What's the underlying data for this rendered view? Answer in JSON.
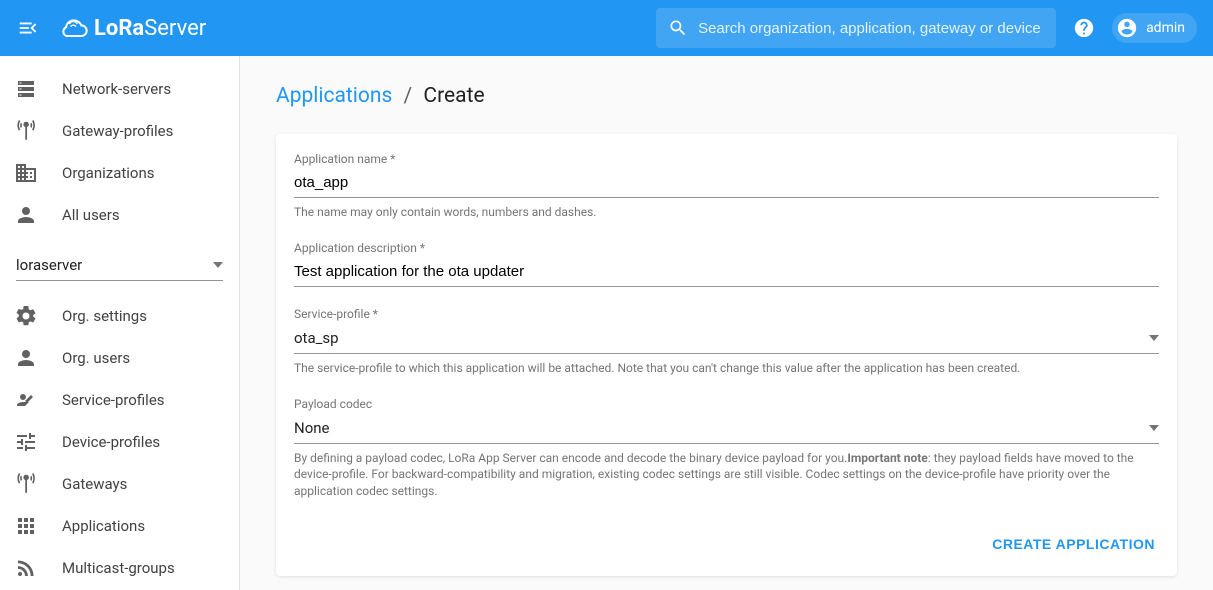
{
  "header": {
    "brand_bold": "LoRa",
    "brand_light": "Server",
    "search_placeholder": "Search organization, application, gateway or device",
    "user_label": "admin"
  },
  "sidebar": {
    "global_items": [
      {
        "label": "Network-servers",
        "icon": "dns"
      },
      {
        "label": "Gateway-profiles",
        "icon": "antenna"
      },
      {
        "label": "Organizations",
        "icon": "domain"
      },
      {
        "label": "All users",
        "icon": "person"
      }
    ],
    "org_selected": "loraserver",
    "org_items": [
      {
        "label": "Org. settings",
        "icon": "gear"
      },
      {
        "label": "Org. users",
        "icon": "person"
      },
      {
        "label": "Service-profiles",
        "icon": "person-card"
      },
      {
        "label": "Device-profiles",
        "icon": "tune"
      },
      {
        "label": "Gateways",
        "icon": "antenna"
      },
      {
        "label": "Applications",
        "icon": "apps"
      },
      {
        "label": "Multicast-groups",
        "icon": "rss"
      }
    ]
  },
  "breadcrumb": {
    "parent": "Applications",
    "current": "Create"
  },
  "form": {
    "app_name": {
      "label": "Application name *",
      "value": "ota_app",
      "help": "The name may only contain words, numbers and dashes."
    },
    "app_desc": {
      "label": "Application description *",
      "value": "Test application for the ota updater"
    },
    "service_profile": {
      "label": "Service-profile *",
      "value": "ota_sp",
      "help": "The service-profile to which this application will be attached. Note that you can't change this value after the application has been created."
    },
    "payload_codec": {
      "label": "Payload codec",
      "value": "None",
      "help_pre": "By defining a payload codec, LoRa App Server can encode and decode the binary device payload for you.",
      "help_bold": "Important note",
      "help_post": ": they payload fields have moved to the device-profile. For backward-compatibility and migration, existing codec settings are still visible. Codec settings on the device-profile have priority over the application codec settings."
    },
    "submit_label": "CREATE APPLICATION"
  },
  "colors": {
    "primary": "#2196f3",
    "text_muted": "#757575"
  }
}
